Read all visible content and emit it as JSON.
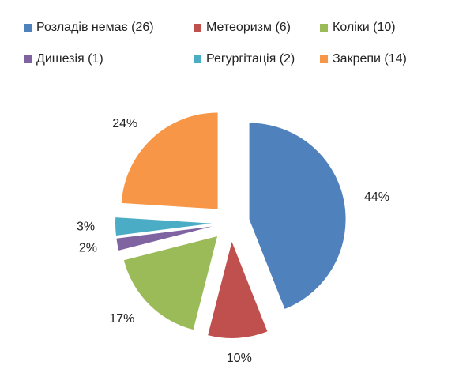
{
  "chart_data": {
    "type": "pie",
    "categories": [
      "Розладів немає (26)",
      "Метеоризм (6)",
      "Коліки (10)",
      "Дишезія (1)",
      "Регургітація (2)",
      "Закрепи (14)"
    ],
    "values": [
      44,
      10,
      17,
      2,
      3,
      24
    ],
    "value_labels": [
      "44%",
      "10%",
      "17%",
      "2%",
      "3%",
      "24%"
    ],
    "colors": [
      "#4f81bd",
      "#c0504d",
      "#9bbb59",
      "#8064a2",
      "#4bacc6",
      "#f79646"
    ],
    "legend": "top"
  }
}
